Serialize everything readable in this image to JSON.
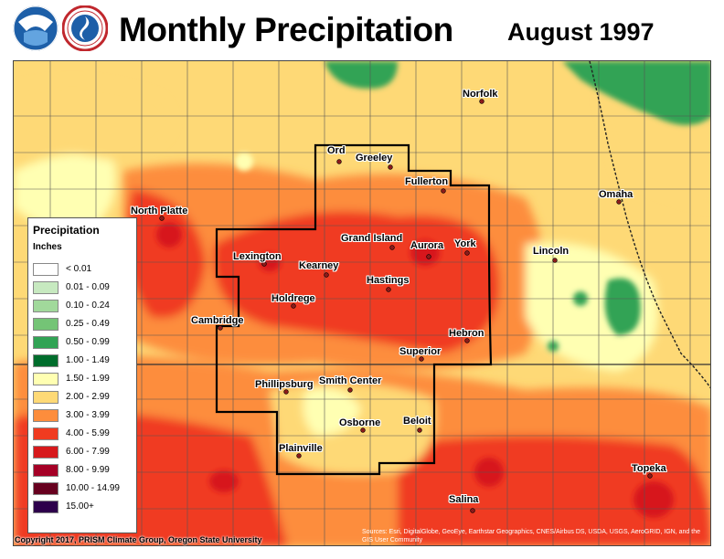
{
  "header": {
    "title": "Monthly Precipitation",
    "date": "August 1997"
  },
  "legend": {
    "title": "Precipitation",
    "units": "Inches",
    "bins": [
      {
        "label": "< 0.01",
        "color": "#ffffff"
      },
      {
        "label": "0.01 - 0.09",
        "color": "#c7e9c0"
      },
      {
        "label": "0.10 - 0.24",
        "color": "#a1d99b"
      },
      {
        "label": "0.25 - 0.49",
        "color": "#74c476"
      },
      {
        "label": "0.50 - 0.99",
        "color": "#31a354"
      },
      {
        "label": "1.00 - 1.49",
        "color": "#006d2c"
      },
      {
        "label": "1.50 - 1.99",
        "color": "#ffffb2"
      },
      {
        "label": "2.00 - 2.99",
        "color": "#fed976"
      },
      {
        "label": "3.00 - 3.99",
        "color": "#fd8d3c"
      },
      {
        "label": "4.00 - 5.99",
        "color": "#f03b20"
      },
      {
        "label": "6.00 - 7.99",
        "color": "#d7191c"
      },
      {
        "label": "8.00 - 9.99",
        "color": "#a50026"
      },
      {
        "label": "10.00 - 14.99",
        "color": "#67001f"
      },
      {
        "label": "15.00+",
        "color": "#2d004b"
      }
    ]
  },
  "cities": [
    {
      "name": "Norfolk"
    },
    {
      "name": "Ord"
    },
    {
      "name": "Greeley"
    },
    {
      "name": "Fullerton"
    },
    {
      "name": "North Platte"
    },
    {
      "name": "Omaha"
    },
    {
      "name": "Grand Island"
    },
    {
      "name": "Aurora"
    },
    {
      "name": "York"
    },
    {
      "name": "Lincoln"
    },
    {
      "name": "Lexington"
    },
    {
      "name": "Kearney"
    },
    {
      "name": "Hastings"
    },
    {
      "name": "Holdrege"
    },
    {
      "name": "Cambridge"
    },
    {
      "name": "Hebron"
    },
    {
      "name": "Superior"
    },
    {
      "name": "Phillipsburg"
    },
    {
      "name": "Smith Center"
    },
    {
      "name": "Osborne"
    },
    {
      "name": "Beloit"
    },
    {
      "name": "Plainville"
    },
    {
      "name": "Topeka"
    },
    {
      "name": "Salina"
    }
  ],
  "footer": {
    "copyright": "Copyright 2017, PRISM Climate Group, Oregon State University",
    "source": "Sources: Esri, DigitalGlobe, GeoEye, Earthstar Geographics, CNES/Airbus DS, USDA, USGS, AeroGRID, IGN, and the GIS User Community"
  },
  "logos": {
    "noaa": "noaa-logo",
    "nws": "nws-logo"
  }
}
